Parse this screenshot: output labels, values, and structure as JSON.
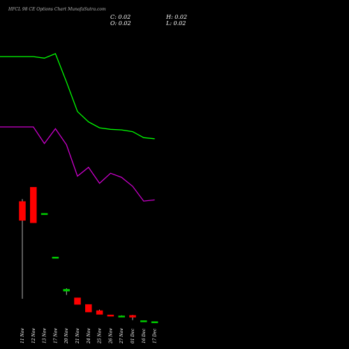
{
  "header": {
    "title": "HFCL 98 CE Options  Chart MunafaSutra.com",
    "open_label": "O: 0.02",
    "high_label": "H: 0.02",
    "low_label": "L: 0.02",
    "close_label": "C: 0.02"
  },
  "colors": {
    "background": "#000000",
    "ma_fast": "#00ff00",
    "ma_slow": "#cc00cc",
    "bull": "#00cc00",
    "bear": "#ff0000",
    "wick": "#ffffff"
  },
  "chart_data": {
    "type": "candlestick",
    "title": "HFCL 98 CE Options  Chart MunafaSutra.com",
    "categories": [
      "11 Nov",
      "12 Nov",
      "13 Nov",
      "17 Nov",
      "20 Nov",
      "21 Nov",
      "24 Nov",
      "25 Nov",
      "26 Nov",
      "27 Nov",
      "01 Dec",
      "16 Dec",
      "17 Dec"
    ],
    "candles": [
      {
        "date": "11 Nov",
        "open": 2.55,
        "high": 2.6,
        "low": 0.5,
        "close": 2.15,
        "color": "red"
      },
      {
        "date": "12 Nov",
        "open": 2.85,
        "high": 2.85,
        "low": 2.1,
        "close": 2.1,
        "color": "red"
      },
      {
        "date": "13 Nov",
        "open": 2.3,
        "high": 2.3,
        "low": 2.28,
        "close": 2.29,
        "color": "green"
      },
      {
        "date": "17 Nov",
        "open": 1.38,
        "high": 1.38,
        "low": 1.36,
        "close": 1.37,
        "color": "green"
      },
      {
        "date": "20 Nov",
        "open": 0.66,
        "high": 0.72,
        "low": 0.58,
        "close": 0.7,
        "color": "green"
      },
      {
        "date": "21 Nov",
        "open": 0.52,
        "high": 0.52,
        "low": 0.38,
        "close": 0.38,
        "color": "red"
      },
      {
        "date": "24 Nov",
        "open": 0.38,
        "high": 0.38,
        "low": 0.22,
        "close": 0.22,
        "color": "red"
      },
      {
        "date": "25 Nov",
        "open": 0.25,
        "high": 0.27,
        "low": 0.17,
        "close": 0.17,
        "color": "red"
      },
      {
        "date": "26 Nov",
        "open": 0.16,
        "high": 0.16,
        "low": 0.14,
        "close": 0.14,
        "color": "red"
      },
      {
        "date": "27 Nov",
        "open": 0.14,
        "high": 0.15,
        "low": 0.13,
        "close": 0.14,
        "color": "green"
      },
      {
        "date": "01 Dec",
        "open": 0.15,
        "high": 0.16,
        "low": 0.05,
        "close": 0.11,
        "color": "red"
      },
      {
        "date": "16 Dec",
        "open": 0.04,
        "high": 0.04,
        "low": 0.03,
        "close": 0.04,
        "color": "green"
      },
      {
        "date": "17 Dec",
        "open": 0.02,
        "high": 0.02,
        "low": 0.02,
        "close": 0.02,
        "color": "green"
      }
    ],
    "price_range": [
      0,
      3.0
    ],
    "moving_averages": [
      {
        "color": "green",
        "values": [
          5.15,
          5.15,
          5.1,
          5.25,
          4.3,
          3.3,
          2.95,
          2.75,
          2.7,
          2.68,
          2.62,
          2.42,
          2.38
        ]
      },
      {
        "color": "magenta",
        "values": [
          2.78,
          2.78,
          2.22,
          2.72,
          2.18,
          1.12,
          1.42,
          0.88,
          1.22,
          1.08,
          0.78,
          0.28,
          0.32
        ]
      },
      {
        "note": "separate scale",
        "values": []
      }
    ],
    "ma_range": [
      0,
      6.0
    ],
    "grid": false,
    "legend": "none"
  }
}
